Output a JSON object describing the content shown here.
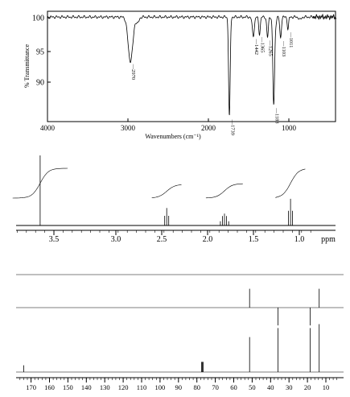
{
  "chart_data": [
    {
      "type": "line",
      "name": "ir",
      "xlabel": "Wavenumbers (cm⁻¹)",
      "ylabel": "% Transmittance",
      "xlim": [
        4000,
        400
      ],
      "ylim": [
        84,
        101
      ],
      "xticks": [
        "4000",
        "3000",
        "2000",
        "1000"
      ],
      "yticks": [
        "100",
        "95",
        "90"
      ],
      "peaks": [
        {
          "x": 2970,
          "y": 93.5,
          "w": 40,
          "label": "2970"
        },
        {
          "x": 1739,
          "y": 85.3,
          "w": 14,
          "label": "1739"
        },
        {
          "x": 1442,
          "y": 97.2,
          "w": 18,
          "label": "1442"
        },
        {
          "x": 1365,
          "y": 97.5,
          "w": 14,
          "label": "1365"
        },
        {
          "x": 1265,
          "y": 97.0,
          "w": 14,
          "label": "1265"
        },
        {
          "x": 1188,
          "y": 87.0,
          "w": 16,
          "label": "1188"
        },
        {
          "x": 1103,
          "y": 96.9,
          "w": 14,
          "label": "1103"
        },
        {
          "x": 1011,
          "y": 98.2,
          "w": 12,
          "label": "1011"
        }
      ]
    },
    {
      "type": "line",
      "name": "1h-nmr",
      "xlabel": "ppm",
      "xlim": [
        3.95,
        0.55
      ],
      "xticks": [
        "3.5",
        "3.0",
        "2.5",
        "2.0",
        "1.5",
        "1.0",
        "ppm"
      ],
      "signals": [
        {
          "shift": 3.65,
          "lines": [
            0
          ],
          "height": 1.0
        },
        {
          "shift": 2.27,
          "lines": [
            -0.022,
            0,
            0.022
          ],
          "height": 0.25
        },
        {
          "shift": 1.64,
          "lines": [
            -0.045,
            -0.022,
            0,
            0.022,
            0.045
          ],
          "height": 0.17
        },
        {
          "shift": 0.92,
          "lines": [
            -0.022,
            0,
            0.022
          ],
          "height": 0.38
        }
      ]
    },
    {
      "type": "line",
      "name": "13c-nmr",
      "xlabel": "",
      "xlim": [
        176,
        4
      ],
      "xticks": [
        "170",
        "160",
        "150",
        "140",
        "130",
        "120",
        "110",
        "100",
        "90",
        "80",
        "70",
        "60",
        "50",
        "40",
        "30",
        "20",
        "10"
      ],
      "broadband": [
        {
          "shift": 173.9,
          "height": 0.12
        },
        {
          "shift": 77.4,
          "height": 0.18
        },
        {
          "shift": 77.0,
          "height": 0.18
        },
        {
          "shift": 76.6,
          "height": 0.18
        },
        {
          "shift": 51.4,
          "height": 0.62
        },
        {
          "shift": 36.0,
          "height": 0.78
        },
        {
          "shift": 18.5,
          "height": 0.78
        },
        {
          "shift": 13.6,
          "height": 0.85
        }
      ],
      "dept135": [
        {
          "shift": 51.4,
          "height": 0.9
        },
        {
          "shift": 36.0,
          "height": -0.85
        },
        {
          "shift": 18.5,
          "height": -0.85
        },
        {
          "shift": 13.6,
          "height": 0.9
        }
      ]
    }
  ]
}
